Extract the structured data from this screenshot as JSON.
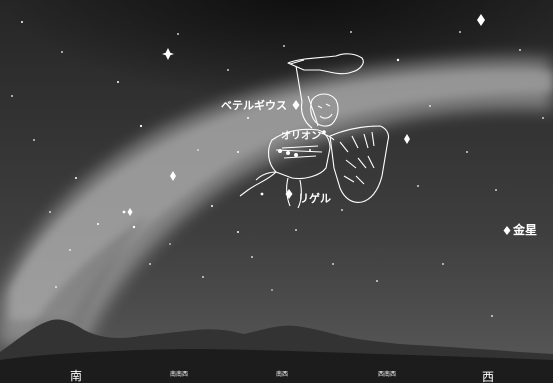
{
  "labels": {
    "betelgeuse": "ベテルギウス",
    "orion": "オリオン",
    "rigel": "リゲル",
    "venus": "金星"
  },
  "directions": {
    "south": "南",
    "sse": "南南西",
    "sw": "南西",
    "wsw": "西南西",
    "west": "西"
  },
  "colors": {
    "sky_top": "#262626",
    "sky_bottom": "#5a5a5a",
    "milky_way": "#b8b8b8",
    "mountain": "#2c2c2c",
    "ground": "#141414"
  }
}
